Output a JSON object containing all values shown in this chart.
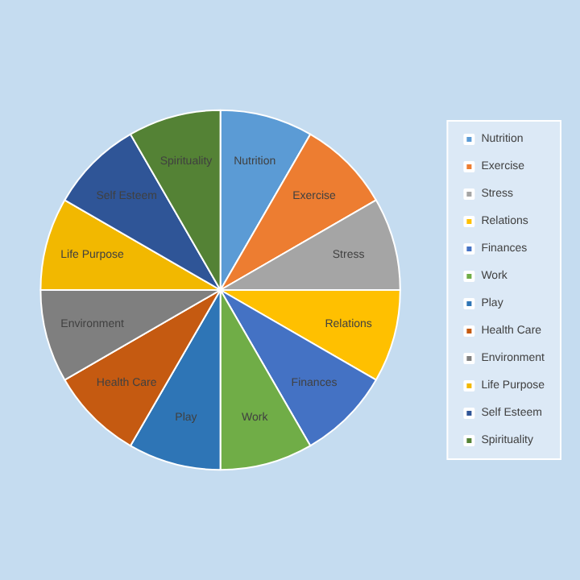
{
  "chart_data": {
    "type": "pie",
    "categories": [
      "Nutrition",
      "Exercise",
      "Stress",
      "Relations",
      "Finances",
      "Work",
      "Play",
      "Health Care",
      "Environment",
      "Life Purpose",
      "Self Esteem",
      "Spirituality"
    ],
    "values": [
      8.33,
      8.33,
      8.33,
      8.33,
      8.33,
      8.33,
      8.33,
      8.33,
      8.33,
      8.33,
      8.33,
      8.33
    ],
    "colors": [
      "#5b9bd5",
      "#ed7d31",
      "#a5a5a5",
      "#ffc000",
      "#4472c4",
      "#70ad47",
      "#2e75b6",
      "#c55a11",
      "#7f7f7f",
      "#f2b800",
      "#2f5597",
      "#548235"
    ],
    "legend": "right"
  }
}
